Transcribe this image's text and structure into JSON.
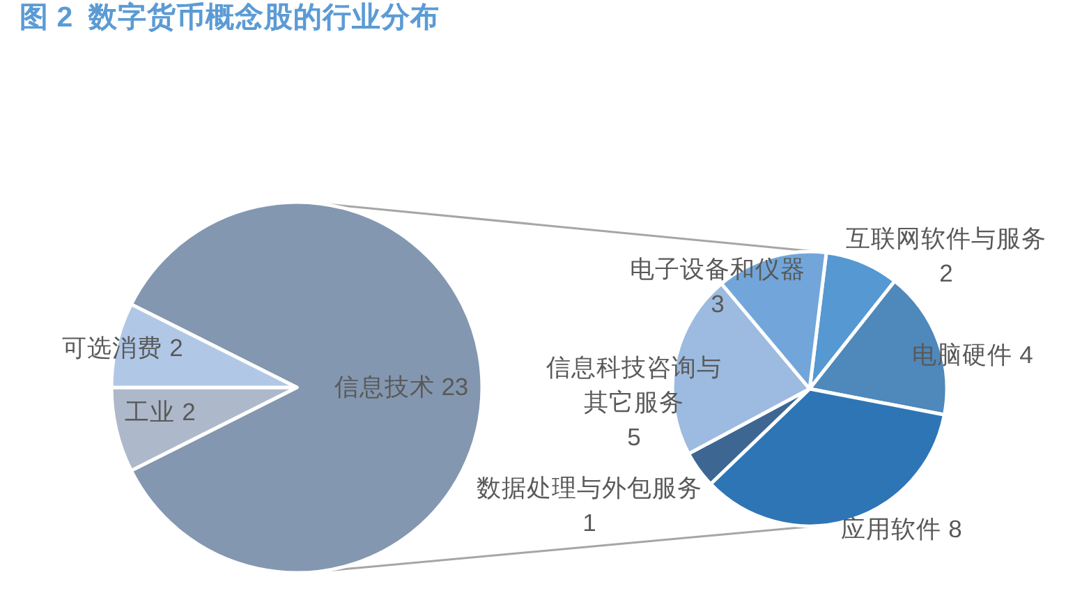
{
  "chart_data": [
    {
      "type": "pie",
      "title": "图 2  数字货币概念股的行业分布",
      "categories": [
        "信息技术",
        "工业",
        "可选消费"
      ],
      "values": [
        23,
        2,
        2
      ],
      "colors": [
        "#8497b0",
        "#adb9ca",
        "#b1c7e6"
      ],
      "data_labels": true
    },
    {
      "type": "pie",
      "categories": [
        "互联网软件与服务",
        "电脑硬件",
        "应用软件",
        "数据处理与外包服务",
        "信息科技咨询与其它服务",
        "电子设备和仪器"
      ],
      "values": [
        2,
        4,
        8,
        1,
        5,
        3
      ],
      "colors": [
        "#5598d2",
        "#4f88bb",
        "#2e75b6",
        "#3d6792",
        "#9dbbe0",
        "#72a6da"
      ],
      "data_labels": true
    }
  ]
}
